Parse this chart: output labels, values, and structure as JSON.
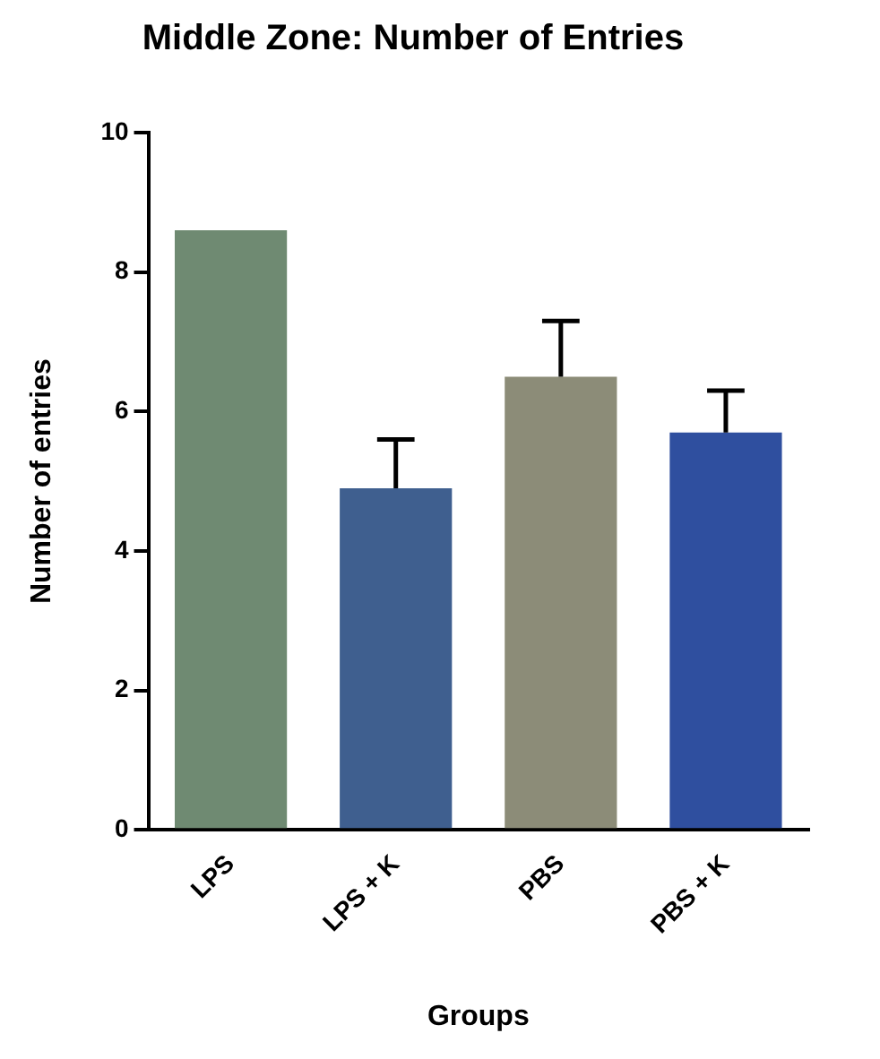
{
  "chart_data": {
    "type": "bar",
    "title": "Middle Zone: Number of Entries",
    "xlabel": "Groups",
    "ylabel": "Number of entries",
    "categories": [
      "LPS",
      "LPS + K",
      "PBS",
      "PBS + K"
    ],
    "values": [
      8.6,
      4.9,
      6.5,
      5.7
    ],
    "colors": [
      "#6f8a72",
      "#3f5f8f",
      "#8c8c78",
      "#2f4f9f"
    ],
    "errors": [
      null,
      [
        4.9,
        5.6
      ],
      [
        6.5,
        7.3
      ],
      [
        5.7,
        6.3
      ]
    ],
    "ylim": [
      0,
      10
    ],
    "yticks": [
      0,
      2,
      4,
      6,
      8,
      10
    ],
    "grid": false,
    "legend": false
  }
}
